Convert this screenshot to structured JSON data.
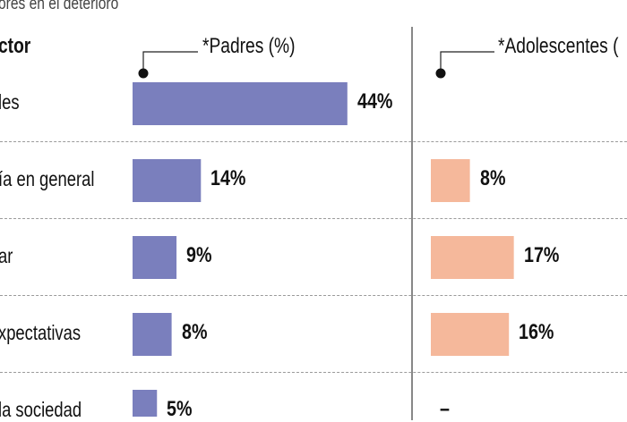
{
  "subtitle": "ores en el deterioro",
  "factor_header": "ctor",
  "chart_data": {
    "type": "bar",
    "orientation": "horizontal",
    "categories": [
      "les",
      "ía en general",
      "ar",
      "xpectativas",
      "la sociedad"
    ],
    "series": [
      {
        "name": "*Padres (%)",
        "values": [
          44,
          14,
          9,
          8,
          5
        ],
        "labels": [
          "44%",
          "14%",
          "9%",
          "8%",
          "5%"
        ],
        "color": "#7a7fbd"
      },
      {
        "name": "*Adolescentes (",
        "values": [
          null,
          8,
          17,
          16,
          null
        ],
        "labels": [
          "",
          "8%",
          "17%",
          "16%",
          "–"
        ],
        "color": "#f5b89b"
      }
    ],
    "grid": false,
    "legend": "none"
  }
}
